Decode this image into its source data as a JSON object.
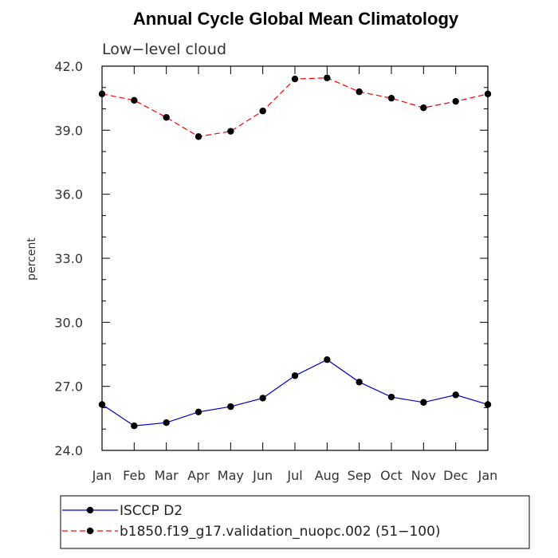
{
  "chart_data": {
    "type": "line",
    "title": "Annual Cycle Global Mean Climatology",
    "subtitle": "Low−level cloud",
    "xlabel": "",
    "ylabel": "percent",
    "categories": [
      "Jan",
      "Feb",
      "Mar",
      "Apr",
      "May",
      "Jun",
      "Jul",
      "Aug",
      "Sep",
      "Oct",
      "Nov",
      "Dec",
      "Jan"
    ],
    "ylim": [
      24.0,
      42.0
    ],
    "yticks": [
      24.0,
      27.0,
      30.0,
      33.0,
      36.0,
      39.0,
      42.0
    ],
    "ytick_labels": [
      "24.0",
      "27.0",
      "30.0",
      "33.0",
      "36.0",
      "39.0",
      "42.0"
    ],
    "series": [
      {
        "name": "ISCCP D2",
        "color": "#0000cc",
        "dash": "solid",
        "values": [
          26.15,
          25.15,
          25.3,
          25.8,
          26.05,
          26.45,
          27.5,
          28.25,
          27.2,
          26.5,
          26.25,
          26.6,
          26.15
        ]
      },
      {
        "name": "b1850.f19_g17.validation_nuopc.002 (51−100)",
        "color": "#ff0000",
        "dash": "dashed",
        "values": [
          40.7,
          40.4,
          39.6,
          38.7,
          38.95,
          39.9,
          41.4,
          41.45,
          40.8,
          40.5,
          40.05,
          40.35,
          40.7
        ]
      }
    ],
    "legend_position": "bottom-left"
  }
}
